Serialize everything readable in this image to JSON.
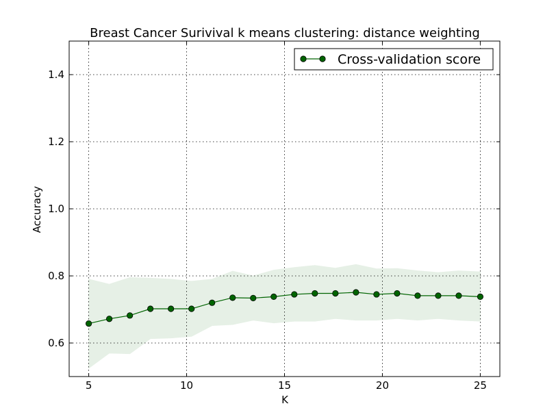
{
  "chart_data": {
    "type": "line",
    "title": "Breast Cancer Surivival k means clustering: distance weighting",
    "xlabel": "K",
    "ylabel": "Accuracy",
    "xlim": [
      4,
      26
    ],
    "ylim": [
      0.5,
      1.5
    ],
    "xticks": [
      5,
      10,
      15,
      20,
      25
    ],
    "yticks": [
      0.6,
      0.8,
      1.0,
      1.2,
      1.4
    ],
    "xtick_labels": [
      "5",
      "10",
      "15",
      "20",
      "25"
    ],
    "ytick_labels": [
      "0.6",
      "0.8",
      "1.0",
      "1.2",
      "1.4"
    ],
    "grid": true,
    "legend_position": "upper right",
    "series": [
      {
        "name": "Cross-validation score",
        "color": "#006400",
        "marker": "circle",
        "x": [
          5,
          6.05,
          7.1,
          8.15,
          9.2,
          10.25,
          11.3,
          12.35,
          13.4,
          14.45,
          15.5,
          16.55,
          17.6,
          18.65,
          19.7,
          20.75,
          21.8,
          22.85,
          23.9,
          25
        ],
        "y": [
          0.658,
          0.672,
          0.682,
          0.702,
          0.702,
          0.702,
          0.72,
          0.735,
          0.734,
          0.738,
          0.745,
          0.748,
          0.748,
          0.751,
          0.745,
          0.748,
          0.741,
          0.741,
          0.741,
          0.738
        ],
        "band_upper": [
          0.79,
          0.775,
          0.795,
          0.793,
          0.79,
          0.784,
          0.79,
          0.814,
          0.8,
          0.817,
          0.825,
          0.831,
          0.823,
          0.834,
          0.821,
          0.822,
          0.815,
          0.81,
          0.815,
          0.812
        ],
        "band_lower": [
          0.525,
          0.57,
          0.568,
          0.613,
          0.615,
          0.62,
          0.652,
          0.655,
          0.668,
          0.66,
          0.665,
          0.665,
          0.673,
          0.668,
          0.668,
          0.673,
          0.668,
          0.673,
          0.668,
          0.665
        ],
        "band_color": "#e6f0e6"
      }
    ]
  }
}
